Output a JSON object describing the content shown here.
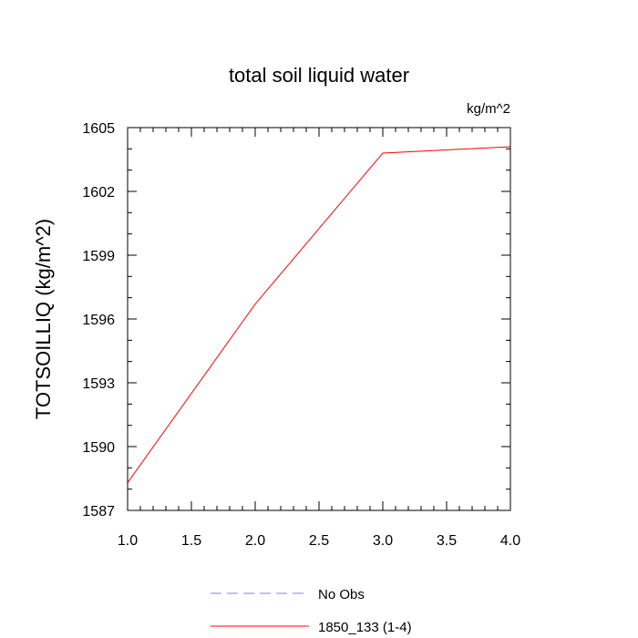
{
  "chart_data": {
    "type": "line",
    "title": "total soil liquid water",
    "units_label": "kg/m^2",
    "ylabel": "TOTSOILLIQ  (kg/m^2)",
    "xlabel": "",
    "xlim": [
      1.0,
      4.0
    ],
    "ylim": [
      1587,
      1605
    ],
    "xticks": [
      1.0,
      1.5,
      2.0,
      2.5,
      3.0,
      3.5,
      4.0
    ],
    "xtick_labels": [
      "1.0",
      "1.5",
      "2.0",
      "2.5",
      "3.0",
      "3.5",
      "4.0"
    ],
    "yticks": [
      1587,
      1590,
      1593,
      1596,
      1599,
      1602,
      1605
    ],
    "ytick_labels": [
      "1587",
      "1590",
      "1593",
      "1596",
      "1599",
      "1602",
      "1605"
    ],
    "grid": false,
    "legend_position": "bottom",
    "series": [
      {
        "name": "1850_133 (1-4)",
        "color": "#ff0000",
        "style": "solid",
        "x": [
          1.0,
          2.0,
          3.0,
          4.0
        ],
        "values": [
          1588.3,
          1596.7,
          1603.8,
          1604.1
        ]
      }
    ],
    "legend": [
      {
        "label": "No Obs",
        "color": "#8080ff",
        "style": "dashed"
      },
      {
        "label": "1850_133 (1-4)",
        "color": "#ff0000",
        "style": "solid"
      }
    ]
  }
}
